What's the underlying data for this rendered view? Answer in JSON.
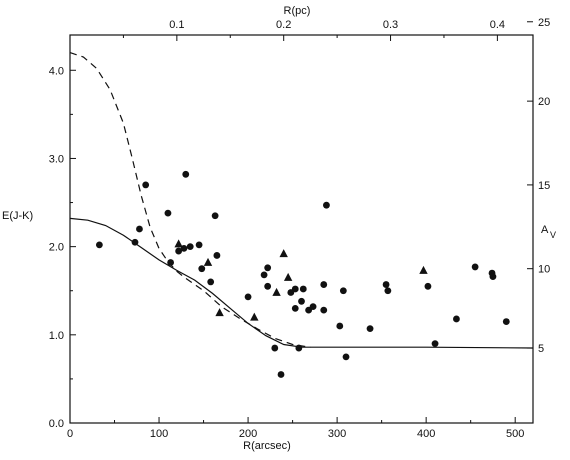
{
  "chart_data": {
    "type": "scatter",
    "title": "",
    "xlabel": "R(arcsec)",
    "ylabel": "E(J-K)",
    "top_xlabel": "R(pc)",
    "right_ylabel": "A",
    "right_ylabel_subscript": "V",
    "xlim": [
      0,
      520
    ],
    "ylim": [
      0,
      4.4
    ],
    "x_ticks": [
      "0",
      "100",
      "200",
      "300",
      "400",
      "500"
    ],
    "x_tick_values": [
      0,
      100,
      200,
      300,
      400,
      500
    ],
    "y_ticks": [
      "0.0",
      "1.0",
      "2.0",
      "3.0",
      "4.0"
    ],
    "y_tick_values": [
      0,
      1,
      2,
      3,
      4
    ],
    "top_ticks": [
      "0.1",
      "0.2",
      "0.3",
      "0.4"
    ],
    "top_tick_positions_arcsec": [
      120,
      240,
      360,
      480
    ],
    "right_ticks": [
      "5",
      "10",
      "15",
      "20",
      "25"
    ],
    "right_tick_values_eJK": [
      0.85,
      1.75,
      2.7,
      3.65,
      4.55
    ],
    "grid": false,
    "series": [
      {
        "marker": "circle",
        "points": [
          [
            33,
            2.02
          ],
          [
            73,
            2.05
          ],
          [
            85,
            2.7
          ],
          [
            78,
            2.2
          ],
          [
            110,
            2.38
          ],
          [
            113,
            1.82
          ],
          [
            122,
            1.95
          ],
          [
            130,
            2.82
          ],
          [
            128,
            1.98
          ],
          [
            135,
            2.0
          ],
          [
            145,
            2.02
          ],
          [
            148,
            1.75
          ],
          [
            158,
            1.6
          ],
          [
            163,
            2.35
          ],
          [
            165,
            1.9
          ],
          [
            200,
            1.43
          ],
          [
            218,
            1.68
          ],
          [
            222,
            1.76
          ],
          [
            222,
            1.55
          ],
          [
            230,
            0.85
          ],
          [
            237,
            0.55
          ],
          [
            248,
            1.48
          ],
          [
            253,
            1.3
          ],
          [
            253,
            1.52
          ],
          [
            257,
            0.85
          ],
          [
            260,
            1.38
          ],
          [
            262,
            1.52
          ],
          [
            268,
            1.28
          ],
          [
            273,
            1.32
          ],
          [
            285,
            1.28
          ],
          [
            285,
            1.57
          ],
          [
            288,
            2.47
          ],
          [
            303,
            1.1
          ],
          [
            307,
            1.5
          ],
          [
            310,
            0.75
          ],
          [
            337,
            1.07
          ],
          [
            355,
            1.57
          ],
          [
            357,
            1.5
          ],
          [
            402,
            1.55
          ],
          [
            410,
            0.9
          ],
          [
            434,
            1.18
          ],
          [
            455,
            1.77
          ],
          [
            474,
            1.7
          ],
          [
            475,
            1.66
          ],
          [
            490,
            1.15
          ]
        ]
      },
      {
        "marker": "triangle",
        "points": [
          [
            122,
            2.03
          ],
          [
            155,
            1.82
          ],
          [
            168,
            1.25
          ],
          [
            207,
            1.2
          ],
          [
            232,
            1.48
          ],
          [
            240,
            1.92
          ],
          [
            245,
            1.65
          ],
          [
            397,
            1.73
          ]
        ]
      },
      {
        "marker": "solid-line",
        "points": [
          [
            0,
            2.32
          ],
          [
            20,
            2.3
          ],
          [
            40,
            2.24
          ],
          [
            60,
            2.13
          ],
          [
            80,
            1.99
          ],
          [
            100,
            1.85
          ],
          [
            120,
            1.73
          ],
          [
            140,
            1.62
          ],
          [
            160,
            1.47
          ],
          [
            180,
            1.3
          ],
          [
            200,
            1.13
          ],
          [
            220,
            0.99
          ],
          [
            240,
            0.89
          ],
          [
            260,
            0.86
          ],
          [
            300,
            0.86
          ],
          [
            400,
            0.86
          ],
          [
            520,
            0.85
          ]
        ]
      },
      {
        "marker": "dashed-line",
        "points": [
          [
            0,
            4.2
          ],
          [
            15,
            4.15
          ],
          [
            30,
            4.02
          ],
          [
            45,
            3.78
          ],
          [
            60,
            3.4
          ],
          [
            70,
            3.0
          ],
          [
            80,
            2.58
          ],
          [
            90,
            2.22
          ],
          [
            100,
            1.98
          ],
          [
            110,
            1.83
          ],
          [
            120,
            1.72
          ],
          [
            130,
            1.64
          ],
          [
            150,
            1.5
          ],
          [
            170,
            1.32
          ],
          [
            190,
            1.19
          ],
          [
            210,
            1.07
          ],
          [
            230,
            0.96
          ],
          [
            250,
            0.89
          ],
          [
            270,
            0.86
          ]
        ]
      }
    ]
  }
}
